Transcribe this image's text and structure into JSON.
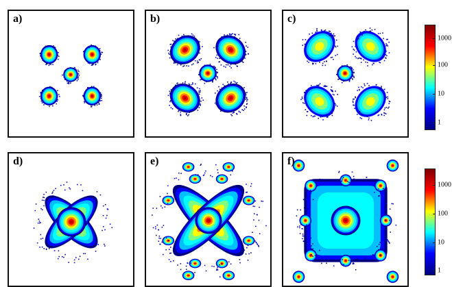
{
  "chart_data": {
    "type": "heatmap",
    "panels": [
      {
        "label": "a)",
        "id": "a"
      },
      {
        "label": "b)",
        "id": "b"
      },
      {
        "label": "c)",
        "id": "c"
      },
      {
        "label": "d)",
        "id": "d"
      },
      {
        "label": "e)",
        "id": "e"
      },
      {
        "label": "f)",
        "id": "f"
      }
    ],
    "colorbars": [
      {
        "scale": "log",
        "range": [
          1,
          2000
        ],
        "ticks": [
          "1000",
          "100",
          "10",
          "1"
        ],
        "tick_values": [
          1000,
          100,
          10,
          1
        ]
      },
      {
        "scale": "log",
        "range": [
          1,
          2000
        ],
        "ticks": [
          "1000",
          "100",
          "10",
          "1"
        ],
        "tick_values": [
          1000,
          100,
          10,
          1
        ]
      }
    ],
    "colormap": "jet",
    "jet_stops": [
      "#00007f",
      "#0000ff",
      "#00ffff",
      "#ffff00",
      "#ff0000",
      "#7f0000"
    ]
  }
}
